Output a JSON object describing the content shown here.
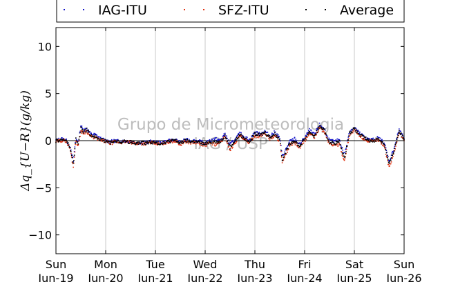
{
  "chart_data": {
    "type": "scatter",
    "title": "",
    "xlabel": "",
    "ylabel": "Δq_{U−R}(g/kg)",
    "ylim": [
      -12,
      12
    ],
    "yticks": [
      -10,
      -5,
      0,
      5,
      10
    ],
    "xlim": [
      0,
      7
    ],
    "xticks": [
      {
        "x": 0,
        "day": "Sun",
        "date": "Jun-19"
      },
      {
        "x": 1,
        "day": "Mon",
        "date": "Jun-20"
      },
      {
        "x": 2,
        "day": "Tue",
        "date": "Jun-21"
      },
      {
        "x": 3,
        "day": "Wed",
        "date": "Jun-22"
      },
      {
        "x": 4,
        "day": "Thu",
        "date": "Jun-23"
      },
      {
        "x": 5,
        "day": "Fri",
        "date": "Jun-24"
      },
      {
        "x": 6,
        "day": "Sat",
        "date": "Jun-25"
      },
      {
        "x": 7,
        "day": "Sun",
        "date": "Jun-26"
      }
    ],
    "grid": "vertical",
    "legend_placement": "top",
    "watermark": [
      "Grupo de Micrometeorologia",
      "IAG / USP"
    ],
    "x": [
      0.0,
      0.1,
      0.2,
      0.28,
      0.35,
      0.4,
      0.45,
      0.5,
      0.55,
      0.62,
      0.7,
      0.8,
      0.9,
      1.0,
      1.1,
      1.2,
      1.3,
      1.4,
      1.5,
      1.6,
      1.7,
      1.8,
      1.9,
      2.0,
      2.1,
      2.2,
      2.3,
      2.4,
      2.5,
      2.6,
      2.7,
      2.8,
      2.9,
      3.0,
      3.1,
      3.2,
      3.3,
      3.4,
      3.5,
      3.6,
      3.7,
      3.8,
      3.9,
      4.0,
      4.1,
      4.2,
      4.3,
      4.4,
      4.5,
      4.55,
      4.6,
      4.7,
      4.8,
      4.9,
      5.0,
      5.1,
      5.2,
      5.3,
      5.4,
      5.45,
      5.5,
      5.6,
      5.7,
      5.8,
      5.9,
      6.0,
      6.1,
      6.2,
      6.3,
      6.4,
      6.45,
      6.5,
      6.6,
      6.7,
      6.8,
      6.9,
      7.0
    ],
    "series": [
      {
        "name": "IAG-ITU",
        "color": "#1010c8",
        "values": [
          0.0,
          0.2,
          0.1,
          -0.6,
          -2.2,
          0.3,
          -0.2,
          1.6,
          1.1,
          1.3,
          0.7,
          0.6,
          0.2,
          0.0,
          -0.1,
          0.0,
          -0.1,
          0.0,
          -0.1,
          -0.2,
          -0.2,
          -0.2,
          -0.1,
          -0.2,
          -0.2,
          -0.1,
          0.0,
          0.1,
          -0.2,
          0.1,
          0.0,
          0.0,
          -0.1,
          -0.3,
          0.0,
          0.2,
          0.0,
          0.7,
          -0.4,
          0.1,
          0.8,
          0.3,
          0.1,
          0.9,
          0.7,
          1.0,
          0.5,
          0.9,
          0.3,
          -1.6,
          -1.2,
          -0.1,
          0.2,
          -0.4,
          0.3,
          1.1,
          0.6,
          1.7,
          1.2,
          0.5,
          0.0,
          -0.1,
          0.1,
          -1.6,
          1.0,
          1.4,
          0.8,
          0.4,
          0.1,
          0.1,
          0.3,
          0.2,
          -0.2,
          -2.2,
          -0.8,
          1.2,
          0.2
        ]
      },
      {
        "name": "SFZ-ITU",
        "color": "#e03010",
        "values": [
          -0.1,
          0.0,
          0.0,
          -0.8,
          -2.8,
          0.0,
          -0.5,
          1.0,
          0.8,
          1.0,
          0.4,
          0.3,
          0.0,
          -0.1,
          -0.3,
          -0.1,
          -0.2,
          -0.1,
          -0.2,
          -0.3,
          -0.3,
          -0.3,
          -0.2,
          -0.3,
          -0.4,
          -0.2,
          -0.1,
          0.0,
          -0.4,
          -0.1,
          -0.2,
          -0.2,
          -0.3,
          -0.5,
          -0.2,
          -0.4,
          -0.2,
          0.4,
          -1.0,
          -0.2,
          0.5,
          0.0,
          -0.2,
          0.6,
          0.4,
          0.8,
          0.2,
          0.5,
          0.0,
          -2.4,
          -1.8,
          -0.5,
          -0.2,
          -0.8,
          0.0,
          0.8,
          0.3,
          1.4,
          0.9,
          0.2,
          -0.3,
          -0.5,
          -0.4,
          -2.2,
          0.6,
          1.1,
          0.5,
          0.2,
          -0.1,
          -0.1,
          0.1,
          0.0,
          -0.5,
          -2.9,
          -1.2,
          0.9,
          0.0
        ]
      },
      {
        "name": "Average",
        "color": "#000000",
        "values": [
          -0.05,
          0.1,
          0.05,
          -0.7,
          -2.5,
          0.15,
          -0.35,
          1.3,
          0.95,
          1.15,
          0.55,
          0.45,
          0.1,
          -0.05,
          -0.2,
          -0.05,
          -0.15,
          -0.05,
          -0.15,
          -0.25,
          -0.25,
          -0.25,
          -0.15,
          -0.25,
          -0.3,
          -0.15,
          -0.05,
          0.05,
          -0.3,
          0.0,
          -0.1,
          -0.1,
          -0.2,
          -0.4,
          -0.1,
          -0.1,
          -0.1,
          0.55,
          -0.7,
          -0.05,
          0.65,
          0.15,
          -0.05,
          0.75,
          0.55,
          0.9,
          0.35,
          0.7,
          0.15,
          -2.0,
          -1.5,
          -0.3,
          0.0,
          -0.6,
          0.15,
          0.95,
          0.45,
          1.55,
          1.05,
          0.35,
          -0.15,
          -0.3,
          -0.15,
          -1.9,
          0.8,
          1.25,
          0.65,
          0.3,
          0.0,
          0.0,
          0.2,
          0.1,
          -0.35,
          -2.55,
          -1.0,
          1.05,
          0.1
        ]
      }
    ]
  }
}
